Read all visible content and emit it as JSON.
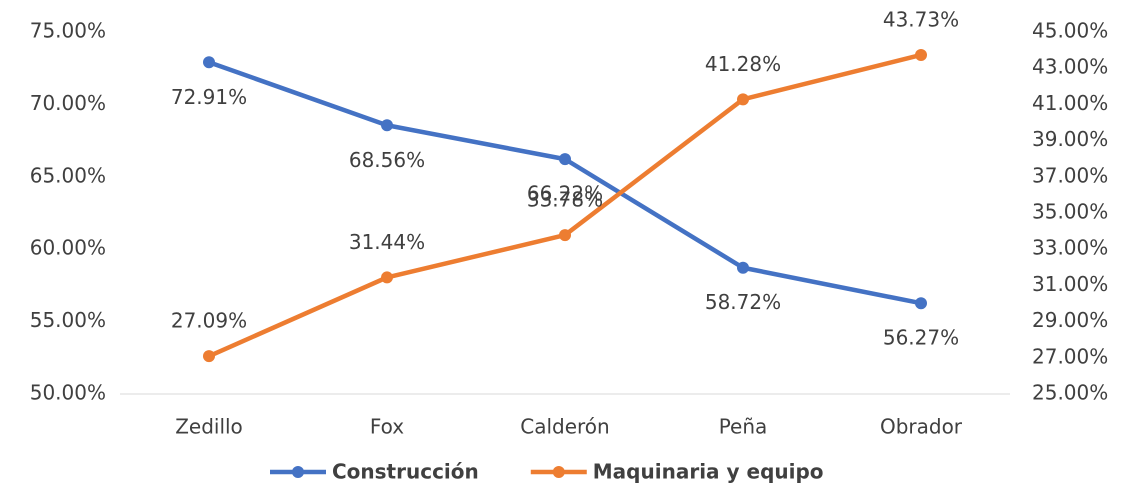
{
  "chart_data": {
    "type": "line",
    "categories": [
      "Zedillo",
      "Fox",
      "Calderón",
      "Peña",
      "Obrador"
    ],
    "series": [
      {
        "name": "Construcción",
        "color": "#4472c4",
        "values": [
          72.91,
          68.56,
          66.22,
          58.72,
          56.27
        ],
        "value_labels": [
          "72.91%",
          "68.56%",
          "66.22%",
          "58.72%",
          "56.27%"
        ]
      },
      {
        "name": "Maquinaria y equipo",
        "color": "#ed7d31",
        "axis": "y2",
        "values": [
          27.09,
          31.44,
          33.78,
          41.28,
          43.73
        ],
        "value_labels": [
          "27.09%",
          "31.44%",
          "33.78%",
          "41.28%",
          "43.73%"
        ]
      }
    ],
    "ylim": [
      50,
      75
    ],
    "yticks": [
      {
        "value": 50,
        "label": "50.00%"
      },
      {
        "value": 55,
        "label": "55.00%"
      },
      {
        "value": 60,
        "label": "60.00%"
      },
      {
        "value": 65,
        "label": "65.00%"
      },
      {
        "value": 70,
        "label": "70.00%"
      },
      {
        "value": 75,
        "label": "75.00%"
      }
    ],
    "y2lim": [
      25,
      45
    ],
    "y2ticks": [
      {
        "value": 25,
        "label": "25.00%"
      },
      {
        "value": 27,
        "label": "27.00%"
      },
      {
        "value": 29,
        "label": "29.00%"
      },
      {
        "value": 31,
        "label": "31.00%"
      },
      {
        "value": 33,
        "label": "33.00%"
      },
      {
        "value": 35,
        "label": "35.00%"
      },
      {
        "value": 37,
        "label": "37.00%"
      },
      {
        "value": 39,
        "label": "39.00%"
      },
      {
        "value": 41,
        "label": "41.00%"
      },
      {
        "value": 43,
        "label": "43.00%"
      },
      {
        "value": 45,
        "label": "45.00%"
      }
    ],
    "legend": "bottom"
  }
}
